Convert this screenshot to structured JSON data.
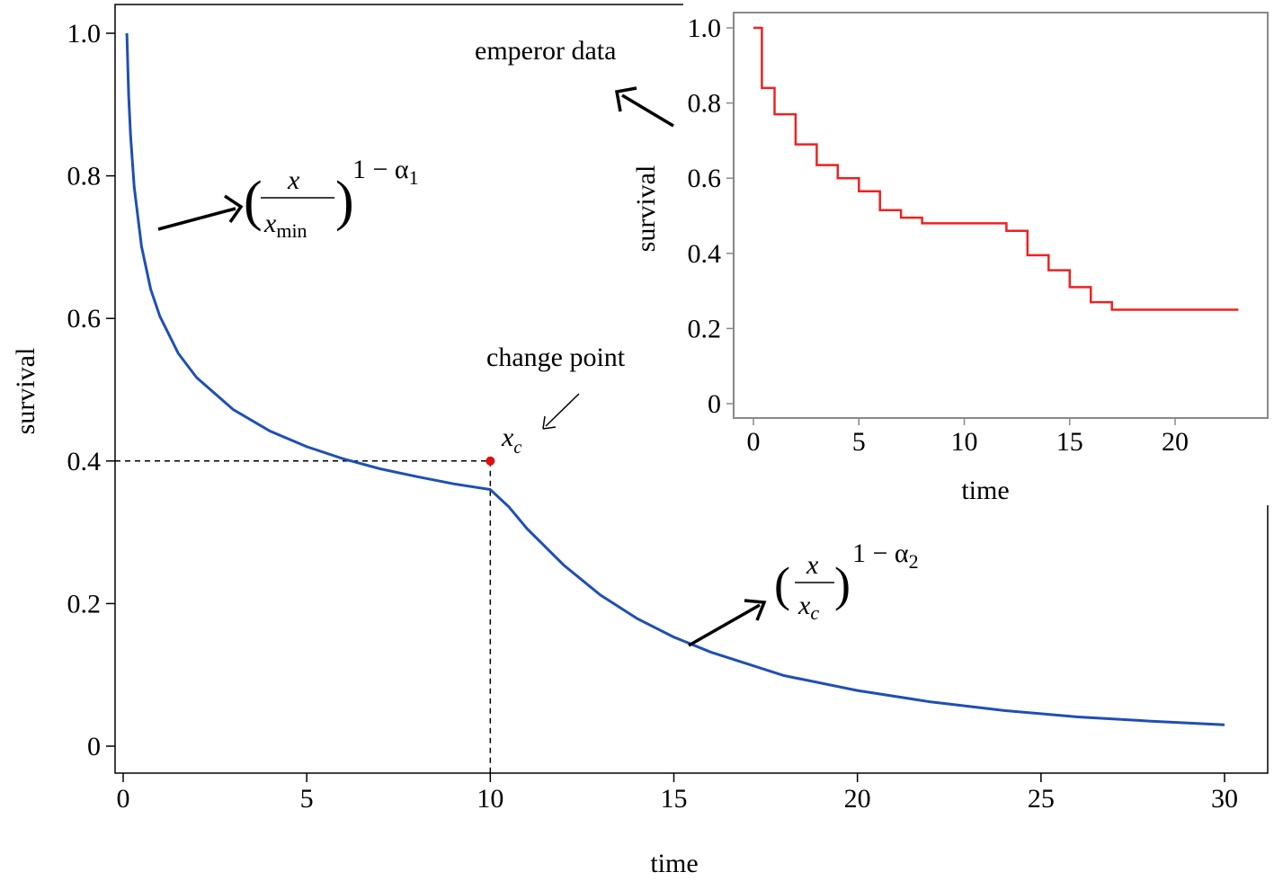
{
  "chart_data": [
    {
      "type": "line",
      "xlabel": "time",
      "ylabel": "survival",
      "xlim": [
        0,
        30
      ],
      "ylim": [
        0,
        1.0
      ],
      "xticks": [
        "0",
        "5",
        "10",
        "15",
        "20",
        "25",
        "30"
      ],
      "yticks": [
        "0",
        "0.2",
        "0.4",
        "0.6",
        "0.8",
        "1.0"
      ],
      "series": [
        {
          "color": "#1f4fb4",
          "x": [
            0.1,
            0.15,
            0.2,
            0.3,
            0.5,
            0.75,
            1,
            1.5,
            2,
            3,
            4,
            5,
            6,
            7,
            8,
            9,
            10,
            10.5,
            11,
            12,
            13,
            14,
            15,
            16,
            18,
            20,
            22,
            24,
            26,
            28,
            30
          ],
          "y": [
            1.0,
            0.913,
            0.857,
            0.784,
            0.701,
            0.641,
            0.603,
            0.551,
            0.517,
            0.472,
            0.442,
            0.42,
            0.403,
            0.389,
            0.378,
            0.368,
            0.36,
            0.336,
            0.305,
            0.254,
            0.212,
            0.179,
            0.153,
            0.132,
            0.099,
            0.078,
            0.062,
            0.05,
            0.041,
            0.035,
            0.03
          ]
        }
      ],
      "change_point": {
        "x": 10,
        "y": 0.4,
        "color": "#dd1111"
      },
      "annotations": {
        "change_point_label": "change point",
        "xc_label": "x",
        "xc_sub": "c",
        "formula1": {
          "num": "x",
          "den": "x",
          "den_sub": "min",
          "exp_base": "1 − α",
          "exp_sub": "1"
        },
        "formula2": {
          "num": "x",
          "den": "x",
          "den_sub": "c",
          "exp_base": "1 − α",
          "exp_sub": "2"
        }
      }
    },
    {
      "type": "line",
      "step": true,
      "label": "emperor data",
      "xlabel": "time",
      "ylabel": "survival",
      "xlim": [
        0,
        23
      ],
      "ylim": [
        0,
        1.0
      ],
      "xticks": [
        "0",
        "5",
        "10",
        "15",
        "20"
      ],
      "yticks": [
        "0",
        "0.2",
        "0.4",
        "0.6",
        "0.8",
        "1.0"
      ],
      "series": [
        {
          "color": "#ee2222",
          "x": [
            0,
            0.4,
            1,
            2,
            3,
            4,
            5,
            6,
            7,
            8,
            12,
            13,
            14,
            15,
            16,
            17,
            23
          ],
          "y": [
            1.0,
            0.84,
            0.77,
            0.69,
            0.635,
            0.6,
            0.565,
            0.515,
            0.495,
            0.48,
            0.46,
            0.395,
            0.355,
            0.31,
            0.27,
            0.25,
            0.25
          ]
        }
      ]
    }
  ]
}
